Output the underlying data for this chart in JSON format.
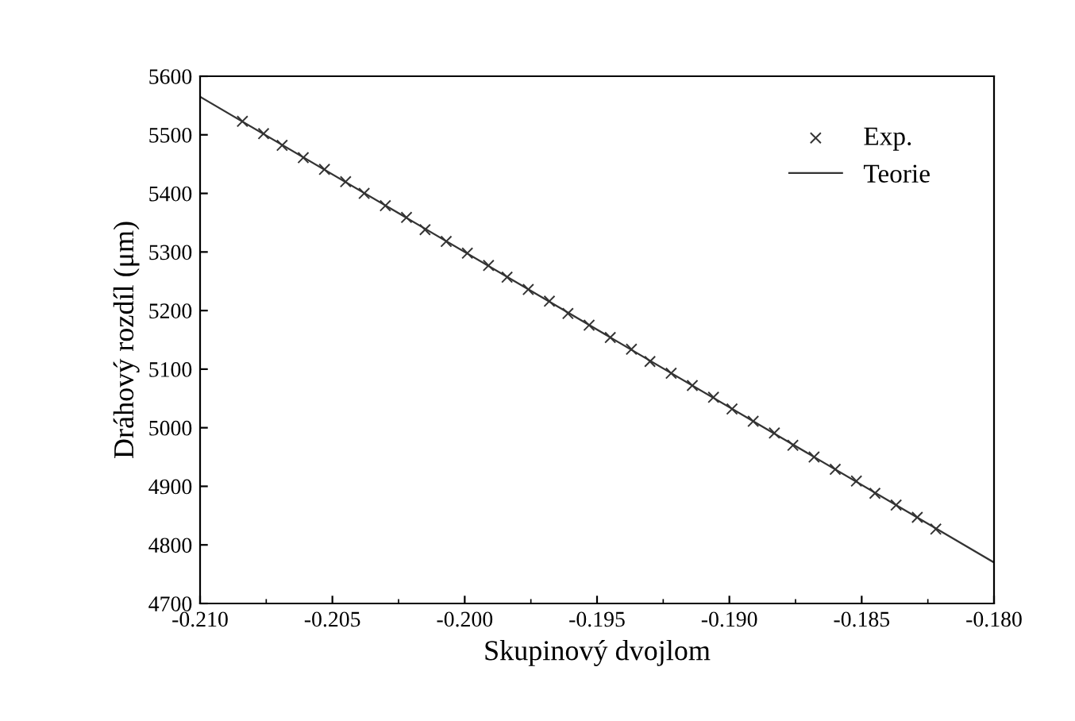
{
  "chart_data": {
    "type": "scatter",
    "xlabel": "Skupinový dvojlom",
    "ylabel": "Dráhový rozdíl (μm)",
    "xlim": [
      -0.21,
      -0.18
    ],
    "xticks": [
      {
        "value": -0.21,
        "label": "-0.210"
      },
      {
        "value": -0.205,
        "label": "-0.205"
      },
      {
        "value": -0.2,
        "label": "-0.200"
      },
      {
        "value": -0.195,
        "label": "-0.195"
      },
      {
        "value": -0.19,
        "label": "-0.190"
      },
      {
        "value": -0.185,
        "label": "-0.185"
      },
      {
        "value": -0.18,
        "label": "-0.180"
      }
    ],
    "ylim": [
      4700,
      5600
    ],
    "yticks": [
      4700,
      4800,
      4900,
      5000,
      5100,
      5200,
      5300,
      5400,
      5500,
      5600
    ],
    "grid": false,
    "legend": "top right",
    "series": [
      {
        "name": "Exp.",
        "marker": "cross",
        "color": "#333333",
        "x": [
          -0.2084,
          -0.2076,
          -0.2069,
          -0.2061,
          -0.2053,
          -0.2045,
          -0.2038,
          -0.203,
          -0.2022,
          -0.2015,
          -0.2007,
          -0.1999,
          -0.1991,
          -0.1984,
          -0.1976,
          -0.1968,
          -0.1961,
          -0.1953,
          -0.1945,
          -0.1937,
          -0.193,
          -0.1922,
          -0.1914,
          -0.1906,
          -0.1899,
          -0.1891,
          -0.1883,
          -0.1876,
          -0.1868,
          -0.186,
          -0.1852,
          -0.1845,
          -0.1837,
          -0.1829,
          -0.1822
        ],
        "values": [
          5523,
          5502,
          5482,
          5461,
          5441,
          5420,
          5400,
          5379,
          5359,
          5338,
          5318,
          5298,
          5277,
          5257,
          5236,
          5216,
          5195,
          5175,
          5154,
          5134,
          5113,
          5093,
          5072,
          5052,
          5032,
          5011,
          4991,
          4970,
          4950,
          4929,
          4909,
          4888,
          4868,
          4847,
          4827
        ]
      },
      {
        "name": "Teorie",
        "type": "line",
        "line_style": "solid",
        "color": "#333333",
        "x": [
          -0.21,
          -0.18
        ],
        "values": [
          5565,
          4770
        ]
      }
    ]
  }
}
